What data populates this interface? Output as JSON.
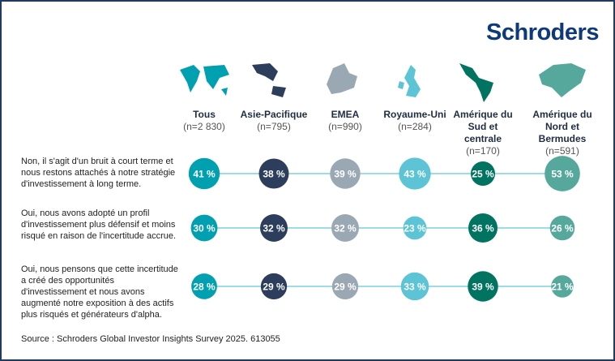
{
  "logo": "Schroders",
  "chart_data": {
    "type": "bubble-table",
    "columns": [
      {
        "name": "Tous",
        "n": "(n=2 830)",
        "color": "#00a0b0"
      },
      {
        "name": "Asie-Pacifique",
        "n": "(n=795)",
        "color": "#2c3e5c"
      },
      {
        "name": "EMEA",
        "n": "(n=990)",
        "color": "#9aa8b4"
      },
      {
        "name": "Royaume-Uni",
        "n": "(n=284)",
        "color": "#5cc4d4"
      },
      {
        "name": "Amérique du Sud et centrale",
        "n": "(n=170)",
        "color": "#007461"
      },
      {
        "name": "Amérique du Nord et Bermudes",
        "n": "(n=591)",
        "color": "#56a89c"
      }
    ],
    "rows": [
      {
        "label": "Non, il s'agit d'un bruit à court terme et nous restons attachés à notre stratégie d'investissement à long terme.",
        "values": [
          41,
          38,
          39,
          43,
          25,
          53
        ]
      },
      {
        "label": "Oui, nous avons adopté un profil d'investissement plus défensif et moins risqué en raison de l'incertitude accrue.",
        "values": [
          30,
          32,
          32,
          23,
          36,
          26
        ]
      },
      {
        "label": "Oui, nous pensons que cette incertitude a créé des opportunités d'investissement et nous avons augmenté notre exposition à des actifs plus risqués et générateurs d'alpha.",
        "values": [
          28,
          29,
          29,
          33,
          39,
          21
        ]
      }
    ],
    "unit": "%",
    "line_color": "#7fd0dc"
  },
  "source": "Source : Schroders Global Investor Insights Survey 2025. 613055"
}
